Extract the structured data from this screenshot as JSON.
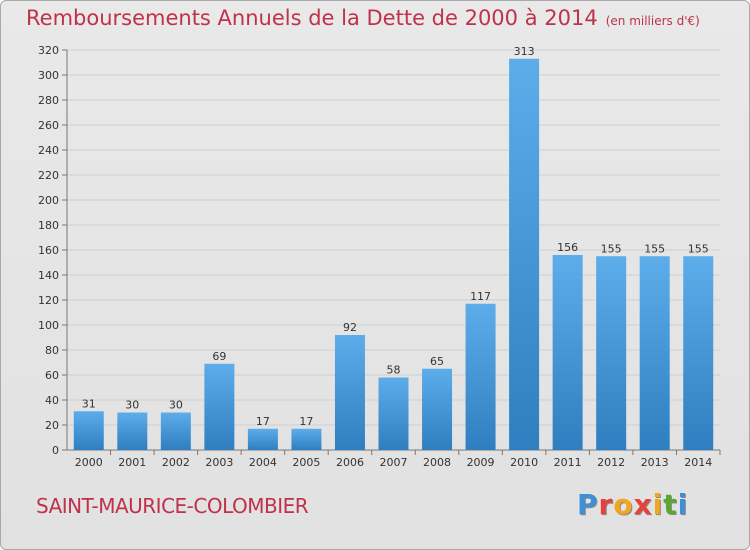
{
  "header": {
    "title": "Remboursements Annuels de la Dette de 2000 à 2014",
    "subtitle": "(en milliers d'€)"
  },
  "footer": {
    "location": "SAINT-MAURICE-COLOMBIER",
    "logo_text": "Proxiti"
  },
  "colors": {
    "title": "#c0314a",
    "bar_top": "#5dadeb",
    "bar_bottom": "#2f7fc0",
    "logo": [
      "#3e8fd8",
      "#e8413b",
      "#f2a51f",
      "#e8413b",
      "#f2a51f",
      "#5aa631",
      "#3e8fd8"
    ]
  },
  "chart_data": {
    "type": "bar",
    "title": "Remboursements Annuels de la Dette de 2000 à 2014",
    "subtitle": "(en milliers d'€)",
    "categories": [
      "2000",
      "2001",
      "2002",
      "2003",
      "2004",
      "2005",
      "2006",
      "2007",
      "2008",
      "2009",
      "2010",
      "2011",
      "2012",
      "2013",
      "2014"
    ],
    "values": [
      31,
      30,
      30,
      69,
      17,
      17,
      92,
      58,
      65,
      117,
      313,
      156,
      155,
      155,
      155
    ],
    "ylim": [
      0,
      320
    ],
    "yticks": [
      0,
      20,
      40,
      60,
      80,
      100,
      120,
      140,
      160,
      180,
      200,
      220,
      240,
      260,
      280,
      300,
      320
    ],
    "grid": true,
    "data_labels": true,
    "xlabel": "",
    "ylabel": ""
  }
}
